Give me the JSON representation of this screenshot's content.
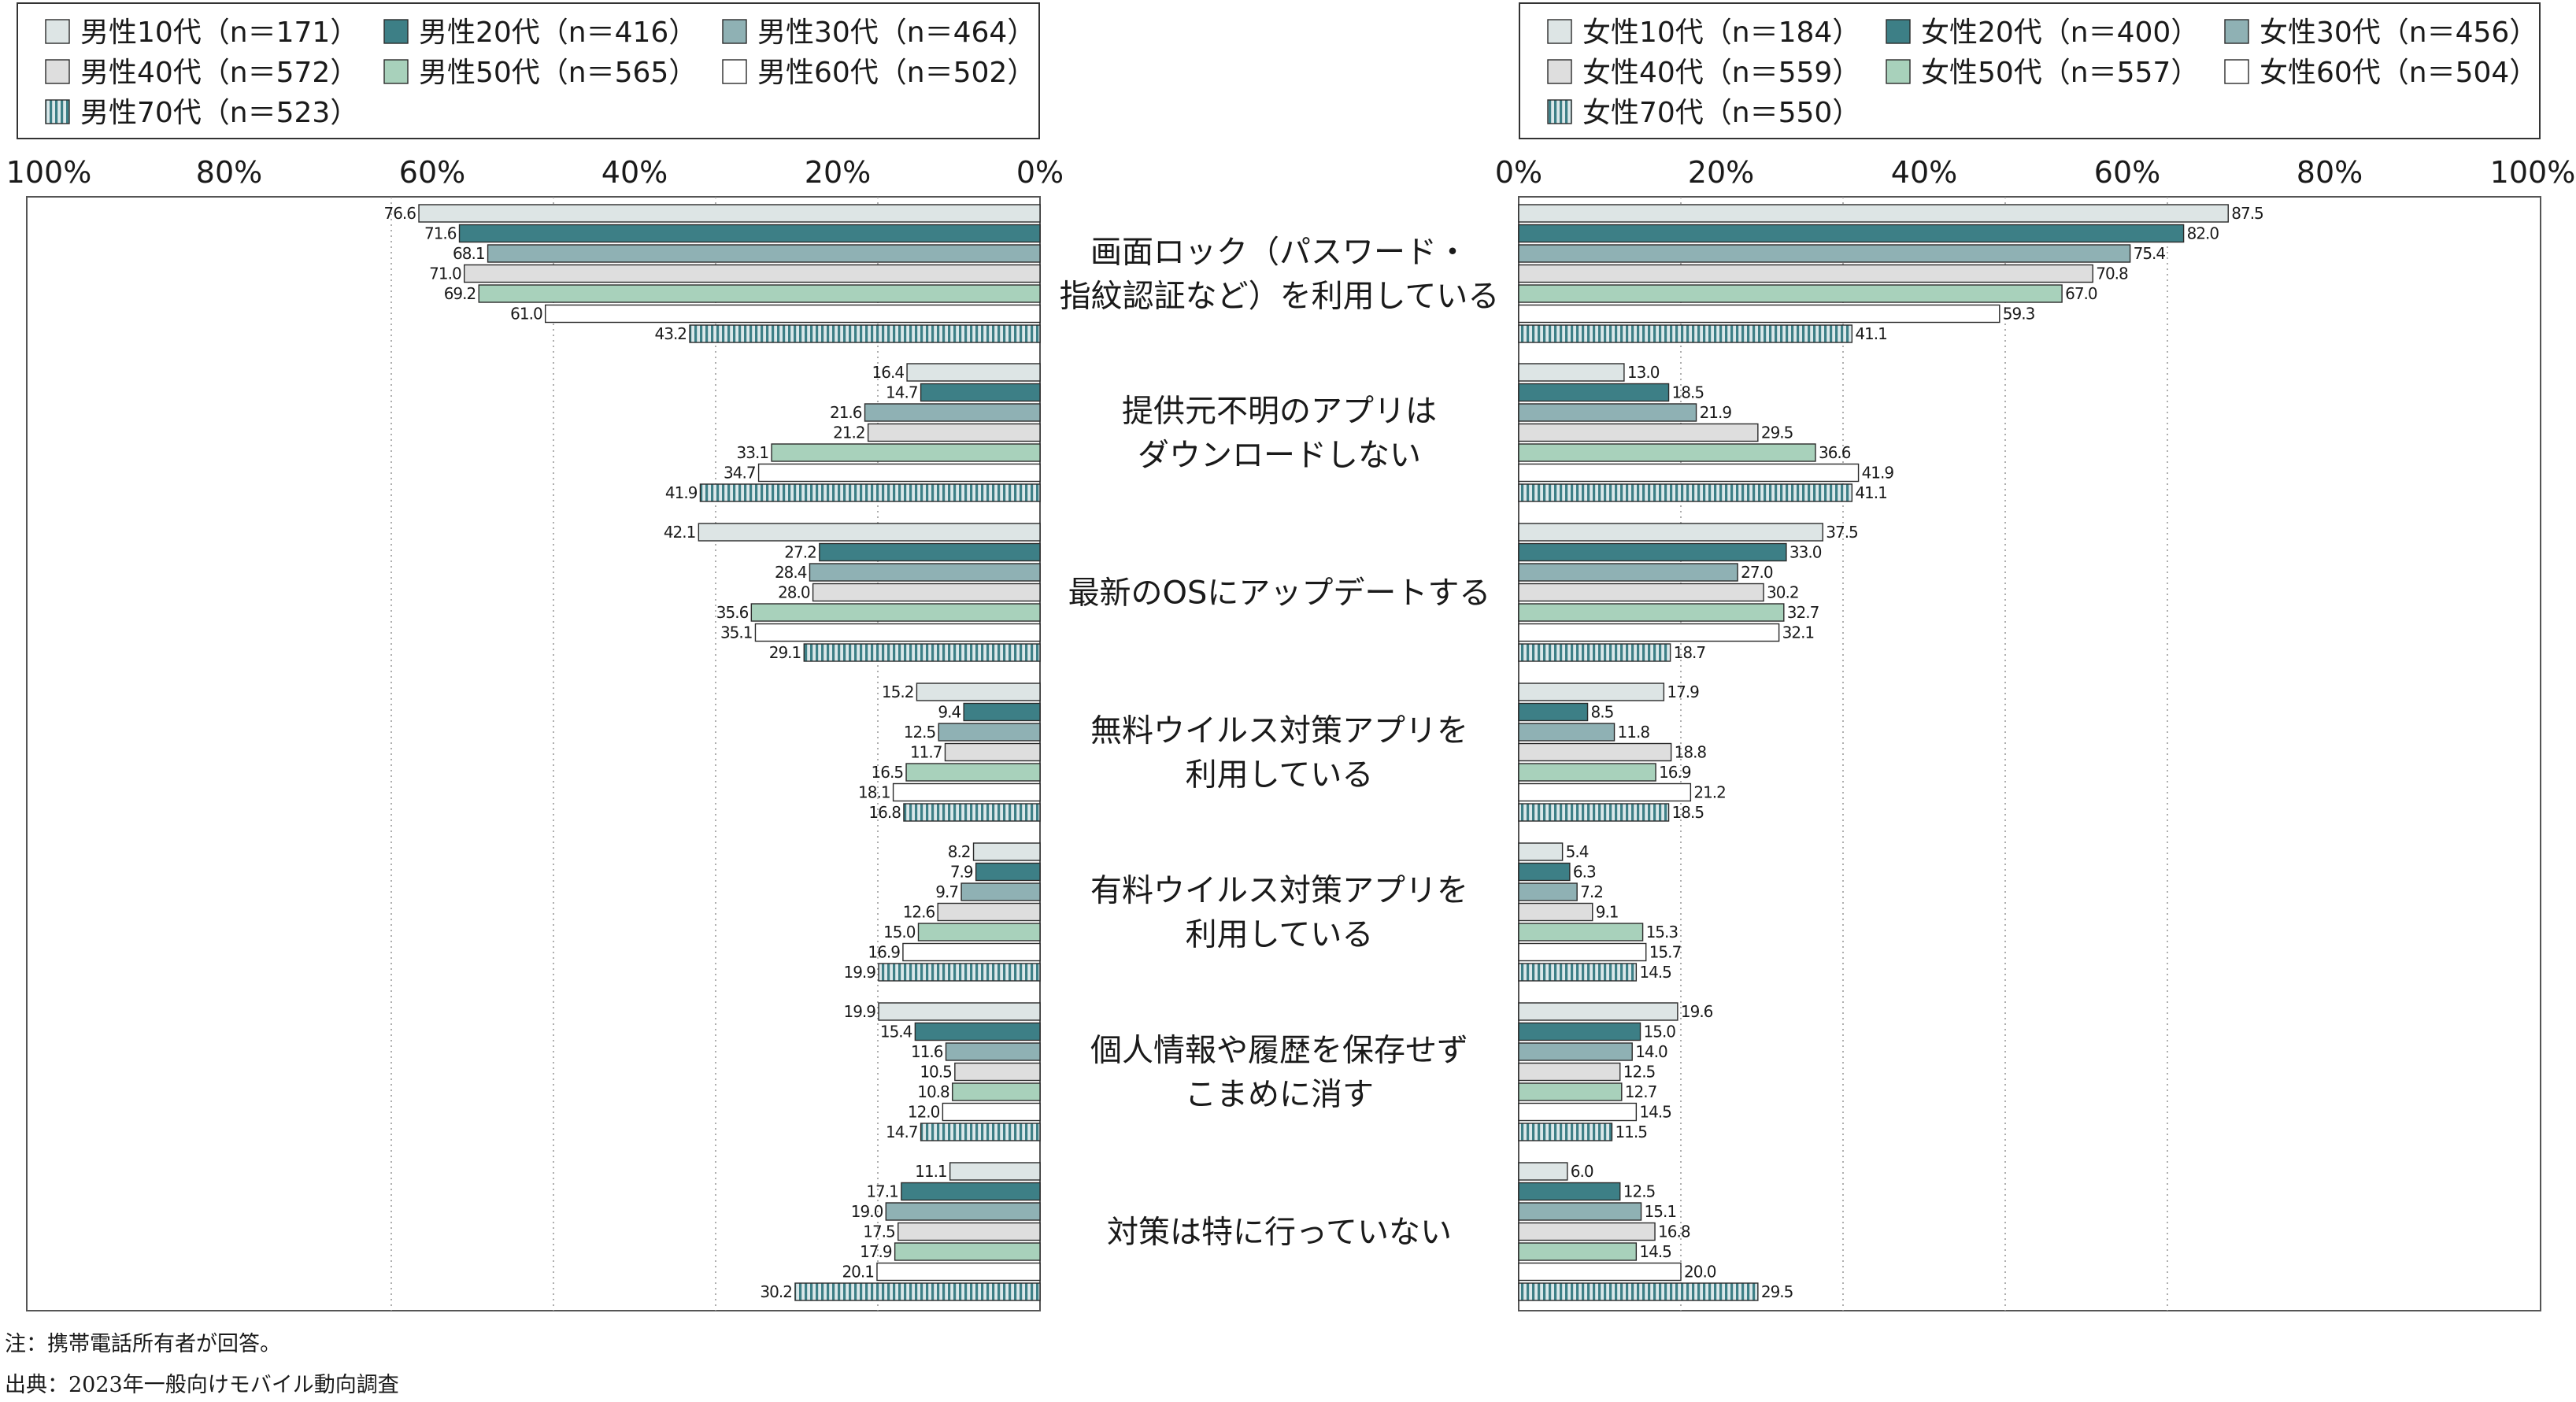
{
  "chart_data": [
    {
      "type": "bar",
      "orientation": "horizontal",
      "direction": "right-to-left",
      "categories": [
        "画面ロック（パスワード・指紋認証など）を利用している",
        "提供元不明のアプリはダウンロードしない",
        "最新のOSにアップデートする",
        "無料ウイルス対策アプリを利用している",
        "有料ウイルス対策アプリを利用している",
        "個人情報や履歴を保存せずこまめに消す",
        "対策は特に行っていない"
      ],
      "xlim": [
        0,
        100
      ],
      "xticks": [
        "100%",
        "80%",
        "60%",
        "40%",
        "20%",
        "0%"
      ],
      "grid": true,
      "legend_position": "top",
      "series": [
        {
          "name": "男性10代（n＝171）",
          "values": [
            76.6,
            16.4,
            42.1,
            15.2,
            8.2,
            19.9,
            11.1
          ],
          "labels": [
            "76.6",
            "16.4",
            "42.1",
            "15.2",
            "8.2",
            "19.9",
            "11.1"
          ],
          "color": "#dde5e5",
          "pattern": "solid"
        },
        {
          "name": "男性20代（n＝416）",
          "values": [
            71.6,
            14.7,
            27.2,
            9.4,
            7.9,
            15.4,
            17.1
          ],
          "labels": [
            "71.6",
            "14.7",
            "27.2",
            "9.4",
            "7.9",
            "15.4",
            "17.1"
          ],
          "color": "#3d7f86",
          "pattern": "solid"
        },
        {
          "name": "男性30代（n＝464）",
          "values": [
            68.1,
            21.6,
            28.4,
            12.5,
            9.7,
            11.6,
            19.0
          ],
          "labels": [
            "68.1",
            "21.6",
            "28.4",
            "12.5",
            "9.7",
            "11.6",
            "19.0"
          ],
          "color": "#8fb1b4",
          "pattern": "solid"
        },
        {
          "name": "男性40代（n＝572）",
          "values": [
            71.0,
            21.2,
            28.0,
            11.7,
            12.6,
            10.5,
            17.5
          ],
          "labels": [
            "71.0",
            "21.2",
            "28.0",
            "11.7",
            "12.6",
            "10.5",
            "17.5"
          ],
          "color": "#dedede",
          "pattern": "solid"
        },
        {
          "name": "男性50代（n＝565）",
          "values": [
            69.2,
            33.1,
            35.6,
            16.5,
            15.0,
            10.8,
            17.9
          ],
          "labels": [
            "69.2",
            "33.1",
            "35.6",
            "16.5",
            "15.0",
            "10.8",
            "17.9"
          ],
          "color": "#a8d1bb",
          "pattern": "solid"
        },
        {
          "name": "男性60代（n＝502）",
          "values": [
            61.0,
            34.7,
            35.1,
            18.1,
            16.9,
            12.0,
            20.1
          ],
          "labels": [
            "61.0",
            "34.7",
            "35.1",
            "18.1",
            "16.9",
            "12.0",
            "20.1"
          ],
          "color": "#ffffff",
          "pattern": "solid"
        },
        {
          "name": "男性70代（n＝523）",
          "values": [
            43.2,
            41.9,
            29.1,
            16.8,
            19.9,
            14.7,
            30.2
          ],
          "labels": [
            "43.2",
            "41.9",
            "29.1",
            "16.8",
            "19.9",
            "14.7",
            "30.2"
          ],
          "color": "#a9c7cc",
          "pattern": "vertical-stripes"
        }
      ]
    },
    {
      "type": "bar",
      "orientation": "horizontal",
      "direction": "left-to-right",
      "categories": [
        "画面ロック（パスワード・指紋認証など）を利用している",
        "提供元不明のアプリはダウンロードしない",
        "最新のOSにアップデートする",
        "無料ウイルス対策アプリを利用している",
        "有料ウイルス対策アプリを利用している",
        "個人情報や履歴を保存せずこまめに消す",
        "対策は特に行っていない"
      ],
      "xlim": [
        0,
        100
      ],
      "xticks": [
        "0%",
        "20%",
        "40%",
        "60%",
        "80%",
        "100%"
      ],
      "grid": true,
      "legend_position": "top",
      "series": [
        {
          "name": "女性10代（n＝184）",
          "values": [
            87.5,
            13.0,
            37.5,
            17.9,
            5.4,
            19.6,
            6.0
          ],
          "labels": [
            "87.5",
            "13.0",
            "37.5",
            "17.9",
            "5.4",
            "19.6",
            "6.0"
          ],
          "color": "#dde5e5",
          "pattern": "solid"
        },
        {
          "name": "女性20代（n＝400）",
          "values": [
            82.0,
            18.5,
            33.0,
            8.5,
            6.3,
            15.0,
            12.5
          ],
          "labels": [
            "82.0",
            "18.5",
            "33.0",
            "8.5",
            "6.3",
            "15.0",
            "12.5"
          ],
          "color": "#3d7f86",
          "pattern": "solid"
        },
        {
          "name": "女性30代（n＝456）",
          "values": [
            75.4,
            21.9,
            27.0,
            11.8,
            7.2,
            14.0,
            15.1
          ],
          "labels": [
            "75.4",
            "21.9",
            "27.0",
            "11.8",
            "7.2",
            "14.0",
            "15.1"
          ],
          "color": "#8fb1b4",
          "pattern": "solid"
        },
        {
          "name": "女性40代（n＝559）",
          "values": [
            70.8,
            29.5,
            30.2,
            18.8,
            9.1,
            12.5,
            16.8
          ],
          "labels": [
            "70.8",
            "29.5",
            "30.2",
            "18.8",
            "9.1",
            "12.5",
            "16.8"
          ],
          "color": "#dedede",
          "pattern": "solid"
        },
        {
          "name": "女性50代（n＝557）",
          "values": [
            67.0,
            36.6,
            32.7,
            16.9,
            15.3,
            12.7,
            14.5
          ],
          "labels": [
            "67.0",
            "36.6",
            "32.7",
            "16.9",
            "15.3",
            "12.7",
            "14.5"
          ],
          "color": "#a8d1bb",
          "pattern": "solid"
        },
        {
          "name": "女性60代（n＝504）",
          "values": [
            59.3,
            41.9,
            32.1,
            21.2,
            15.7,
            14.5,
            20.0
          ],
          "labels": [
            "59.3",
            "41.9",
            "32.1",
            "21.2",
            "15.7",
            "14.5",
            "20.0"
          ],
          "color": "#ffffff",
          "pattern": "solid"
        },
        {
          "name": "女性70代（n＝550）",
          "values": [
            41.1,
            41.1,
            18.7,
            18.5,
            14.5,
            11.5,
            29.5
          ],
          "labels": [
            "41.1",
            "41.1",
            "18.7",
            "18.5",
            "14.5",
            "11.5",
            "29.5"
          ],
          "color": "#a9c7cc",
          "pattern": "vertical-stripes"
        }
      ]
    }
  ],
  "center_labels": [
    [
      "画面ロック（パスワード・",
      "指紋認証など）を利用している"
    ],
    [
      "提供元不明のアプリは",
      "ダウンロードしない"
    ],
    [
      "最新のOSにアップデートする"
    ],
    [
      "無料ウイルス対策アプリを",
      "利用している"
    ],
    [
      "有料ウイルス対策アプリを",
      "利用している"
    ],
    [
      "個人情報や履歴を保存せず",
      "こまめに消す"
    ],
    [
      "対策は特に行っていない"
    ]
  ],
  "notes": {
    "note": "注：携帯電話所有者が回答。",
    "source": "出典：2023年一般向けモバイル動向調査"
  },
  "colors": {
    "axis_frame": "#555555",
    "grid": "#9a9a9a",
    "bar_stroke": "#2a2a2a",
    "stripe_line": "#3d7f86"
  }
}
